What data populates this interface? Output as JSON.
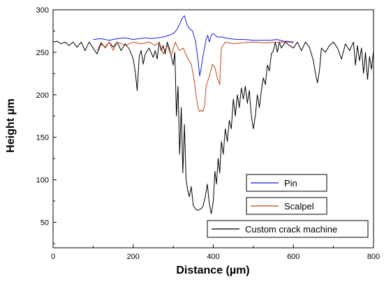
{
  "chart_data": {
    "type": "line",
    "title": "",
    "xlabel": "Distance (µm)",
    "ylabel": "Height µm",
    "xlim": [
      0,
      800
    ],
    "ylim": [
      20,
      300
    ],
    "xticks": [
      0,
      200,
      400,
      600,
      800
    ],
    "yticks": [
      50,
      100,
      150,
      200,
      250,
      300
    ],
    "grid": false,
    "legend_position": "bottom-right",
    "series": [
      {
        "name": "Pin",
        "color": "#1a1adb",
        "x": [
          100,
          120,
          140,
          160,
          180,
          200,
          215,
          230,
          245,
          260,
          275,
          290,
          300,
          308,
          316,
          322,
          328,
          334,
          340,
          348,
          356,
          362,
          366,
          370,
          374,
          378,
          382,
          386,
          390,
          395,
          400,
          410,
          420,
          440,
          460,
          480,
          500,
          520,
          540,
          560,
          575,
          585,
          600
        ],
        "y": [
          265,
          266,
          264,
          266,
          267,
          265,
          266,
          267,
          266,
          267,
          268,
          270,
          272,
          276,
          283,
          290,
          293,
          283,
          278,
          275,
          262,
          240,
          222,
          232,
          245,
          255,
          265,
          270,
          262,
          270,
          272,
          268,
          268,
          266,
          265,
          265,
          264,
          264,
          264,
          265,
          263,
          263,
          262
        ]
      },
      {
        "name": "Scalpel",
        "color": "#c04a1a",
        "x": [
          110,
          120,
          130,
          140,
          150,
          160,
          180,
          200,
          220,
          240,
          255,
          265,
          275,
          285,
          295,
          305,
          315,
          325,
          335,
          345,
          352,
          358,
          362,
          366,
          370,
          374,
          378,
          382,
          390,
          398,
          404,
          410,
          416,
          420,
          430,
          450,
          470,
          500,
          530,
          560,
          590,
          600
        ],
        "y": [
          252,
          262,
          255,
          262,
          252,
          262,
          258,
          262,
          260,
          262,
          258,
          262,
          248,
          258,
          246,
          262,
          252,
          255,
          244,
          236,
          218,
          196,
          185,
          180,
          182,
          180,
          187,
          210,
          222,
          236,
          232,
          220,
          212,
          255,
          262,
          260,
          261,
          262,
          261,
          262,
          262,
          261
        ]
      },
      {
        "name": "Custom crack machine",
        "color": "#000000",
        "x": [
          0,
          10,
          20,
          30,
          40,
          50,
          60,
          70,
          80,
          90,
          100,
          110,
          120,
          130,
          140,
          150,
          160,
          170,
          180,
          190,
          200,
          205,
          210,
          215,
          220,
          225,
          230,
          240,
          250,
          255,
          260,
          265,
          270,
          275,
          280,
          285,
          290,
          295,
          300,
          304,
          308,
          312,
          316,
          320,
          324,
          328,
          332,
          336,
          340,
          345,
          350,
          355,
          360,
          365,
          370,
          375,
          380,
          385,
          390,
          395,
          400,
          404,
          408,
          412,
          416,
          420,
          425,
          430,
          435,
          440,
          445,
          450,
          455,
          460,
          465,
          470,
          475,
          480,
          485,
          490,
          495,
          500,
          505,
          510,
          515,
          520,
          525,
          530,
          535,
          540,
          545,
          550,
          555,
          560,
          565,
          570,
          580,
          590,
          600,
          610,
          620,
          630,
          640,
          650,
          655,
          660,
          665,
          670,
          680,
          690,
          700,
          710,
          720,
          730,
          740,
          750,
          755,
          760,
          765,
          770,
          775,
          780,
          785,
          790,
          795,
          800
        ],
        "y": [
          262,
          263,
          260,
          262,
          258,
          262,
          256,
          262,
          252,
          262,
          255,
          248,
          260,
          256,
          262,
          256,
          262,
          252,
          260,
          254,
          242,
          228,
          205,
          245,
          252,
          236,
          248,
          255,
          244,
          252,
          242,
          262,
          252,
          258,
          248,
          262,
          255,
          245,
          235,
          250,
          175,
          210,
          130,
          185,
          108,
          165,
          100,
          88,
          80,
          92,
          70,
          66,
          64,
          65,
          66,
          70,
          80,
          95,
          72,
          60,
          75,
          110,
          95,
          125,
          108,
          145,
          130,
          160,
          145,
          170,
          160,
          195,
          175,
          200,
          185,
          208,
          195,
          210,
          190,
          205,
          175,
          160,
          175,
          200,
          185,
          205,
          220,
          212,
          235,
          228,
          248,
          252,
          262,
          250,
          262,
          255,
          262,
          258,
          255,
          262,
          252,
          262,
          256,
          240,
          225,
          214,
          228,
          255,
          250,
          258,
          262,
          255,
          242,
          260,
          252,
          262,
          235,
          258,
          240,
          255,
          225,
          250,
          218,
          245,
          230,
          252
        ]
      }
    ]
  }
}
